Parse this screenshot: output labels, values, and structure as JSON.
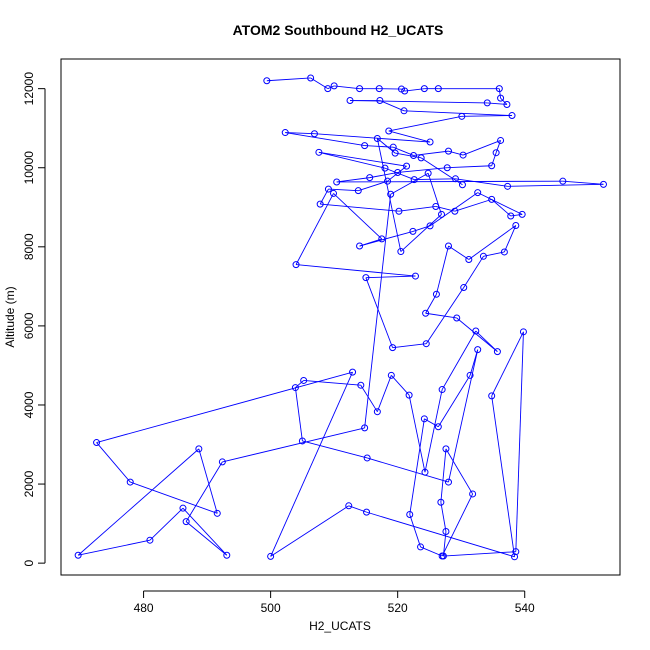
{
  "chart_data": {
    "type": "scatter",
    "title": "ATOM2 Southbound H2_UCATS",
    "xlabel": "H2_UCATS",
    "ylabel": "Altitude (m)",
    "xlim": [
      467,
      555
    ],
    "ylim": [
      -300,
      12750
    ],
    "x_ticks": [
      480,
      500,
      520,
      540
    ],
    "y_ticks": [
      0,
      2000,
      4000,
      6000,
      8000,
      10000,
      12000
    ],
    "grid": false,
    "style": {
      "line_color": "#0000ff",
      "marker": "open-circle",
      "connected": true
    },
    "series": [
      {
        "points": [
          [
            499.4,
            12200
          ],
          [
            506.3,
            12270
          ],
          [
            509.0,
            12000
          ],
          [
            510.0,
            12070
          ],
          [
            514.0,
            12000
          ],
          [
            517.1,
            12000
          ],
          [
            520.6,
            11990
          ],
          [
            521.1,
            11940
          ],
          [
            524.2,
            12000
          ],
          [
            526.4,
            12000
          ],
          [
            536.0,
            12000
          ],
          [
            536.2,
            11760
          ],
          [
            537.2,
            11600
          ],
          [
            534.1,
            11640
          ],
          [
            512.5,
            11700
          ],
          [
            517.2,
            11700
          ],
          [
            521.0,
            11440
          ],
          [
            538.0,
            11320
          ],
          [
            530.1,
            11300
          ],
          [
            518.6,
            10930
          ],
          [
            525.1,
            10650
          ],
          [
            506.9,
            10860
          ],
          [
            502.3,
            10890
          ],
          [
            514.8,
            10560
          ],
          [
            519.3,
            10520
          ],
          [
            522.5,
            10310
          ],
          [
            528.0,
            10420
          ],
          [
            530.3,
            10320
          ],
          [
            536.2,
            10690
          ],
          [
            535.5,
            10380
          ],
          [
            534.8,
            10050
          ],
          [
            527.8,
            10000
          ],
          [
            520.0,
            9880
          ],
          [
            515.6,
            9750
          ],
          [
            510.4,
            9640
          ],
          [
            546.0,
            9660
          ],
          [
            552.4,
            9580
          ],
          [
            537.3,
            9530
          ],
          [
            529.1,
            9720
          ],
          [
            522.6,
            9700
          ],
          [
            518.0,
            9990
          ],
          [
            507.6,
            10390
          ],
          [
            521.4,
            10040
          ],
          [
            518.4,
            9660
          ],
          [
            513.8,
            9420
          ],
          [
            509.1,
            9460
          ],
          [
            507.8,
            9080
          ],
          [
            520.2,
            8900
          ],
          [
            526.0,
            9020
          ],
          [
            529.0,
            8900
          ],
          [
            534.8,
            9200
          ],
          [
            537.8,
            8780
          ],
          [
            539.6,
            8820
          ],
          [
            532.6,
            9370
          ],
          [
            525.1,
            8530
          ],
          [
            522.4,
            8390
          ],
          [
            514.0,
            8020
          ],
          [
            517.5,
            8200
          ],
          [
            509.9,
            9350
          ],
          [
            504.0,
            7550
          ],
          [
            522.8,
            7260
          ],
          [
            515.0,
            7220
          ],
          [
            519.2,
            5450
          ],
          [
            524.5,
            5550
          ],
          [
            530.4,
            6970
          ],
          [
            533.5,
            7760
          ],
          [
            536.8,
            7870
          ],
          [
            538.6,
            8540
          ],
          [
            531.2,
            7680
          ],
          [
            528.0,
            8020
          ],
          [
            526.1,
            6800
          ],
          [
            524.4,
            6320
          ],
          [
            529.3,
            6200
          ],
          [
            535.7,
            5350
          ],
          [
            532.3,
            5870
          ],
          [
            527.0,
            4390
          ],
          [
            524.3,
            2300
          ],
          [
            521.8,
            4250
          ],
          [
            519.0,
            4750
          ],
          [
            516.8,
            3830
          ],
          [
            514.2,
            4500
          ],
          [
            505.2,
            4620
          ],
          [
            503.9,
            4440
          ],
          [
            505.0,
            3090
          ],
          [
            515.2,
            2660
          ],
          [
            528.0,
            2050
          ],
          [
            532.6,
            5400
          ],
          [
            531.4,
            4750
          ],
          [
            526.4,
            3450
          ],
          [
            524.2,
            3650
          ],
          [
            521.9,
            1230
          ],
          [
            523.6,
            410
          ],
          [
            527.0,
            180
          ],
          [
            531.8,
            1750
          ],
          [
            527.6,
            2890
          ],
          [
            526.8,
            1540
          ],
          [
            527.6,
            800
          ],
          [
            527.2,
            180
          ],
          [
            538.6,
            290
          ],
          [
            539.8,
            5850
          ],
          [
            534.8,
            4230
          ],
          [
            538.4,
            160
          ],
          [
            515.1,
            1290
          ],
          [
            512.3,
            1450
          ],
          [
            500.0,
            170
          ],
          [
            512.9,
            4830
          ],
          [
            472.6,
            3050
          ],
          [
            477.9,
            2050
          ],
          [
            491.6,
            1260
          ],
          [
            488.7,
            2890
          ],
          [
            469.7,
            200
          ],
          [
            481.0,
            580
          ],
          [
            486.2,
            1390
          ],
          [
            493.1,
            200
          ],
          [
            486.7,
            1050
          ],
          [
            492.4,
            2560
          ],
          [
            514.8,
            3420
          ],
          [
            518.9,
            9330
          ],
          [
            524.8,
            9860
          ],
          [
            526.9,
            8820
          ],
          [
            520.5,
            7880
          ],
          [
            516.8,
            10740
          ],
          [
            519.6,
            10370
          ],
          [
            523.7,
            10250
          ],
          [
            530.2,
            9570
          ]
        ]
      }
    ]
  }
}
